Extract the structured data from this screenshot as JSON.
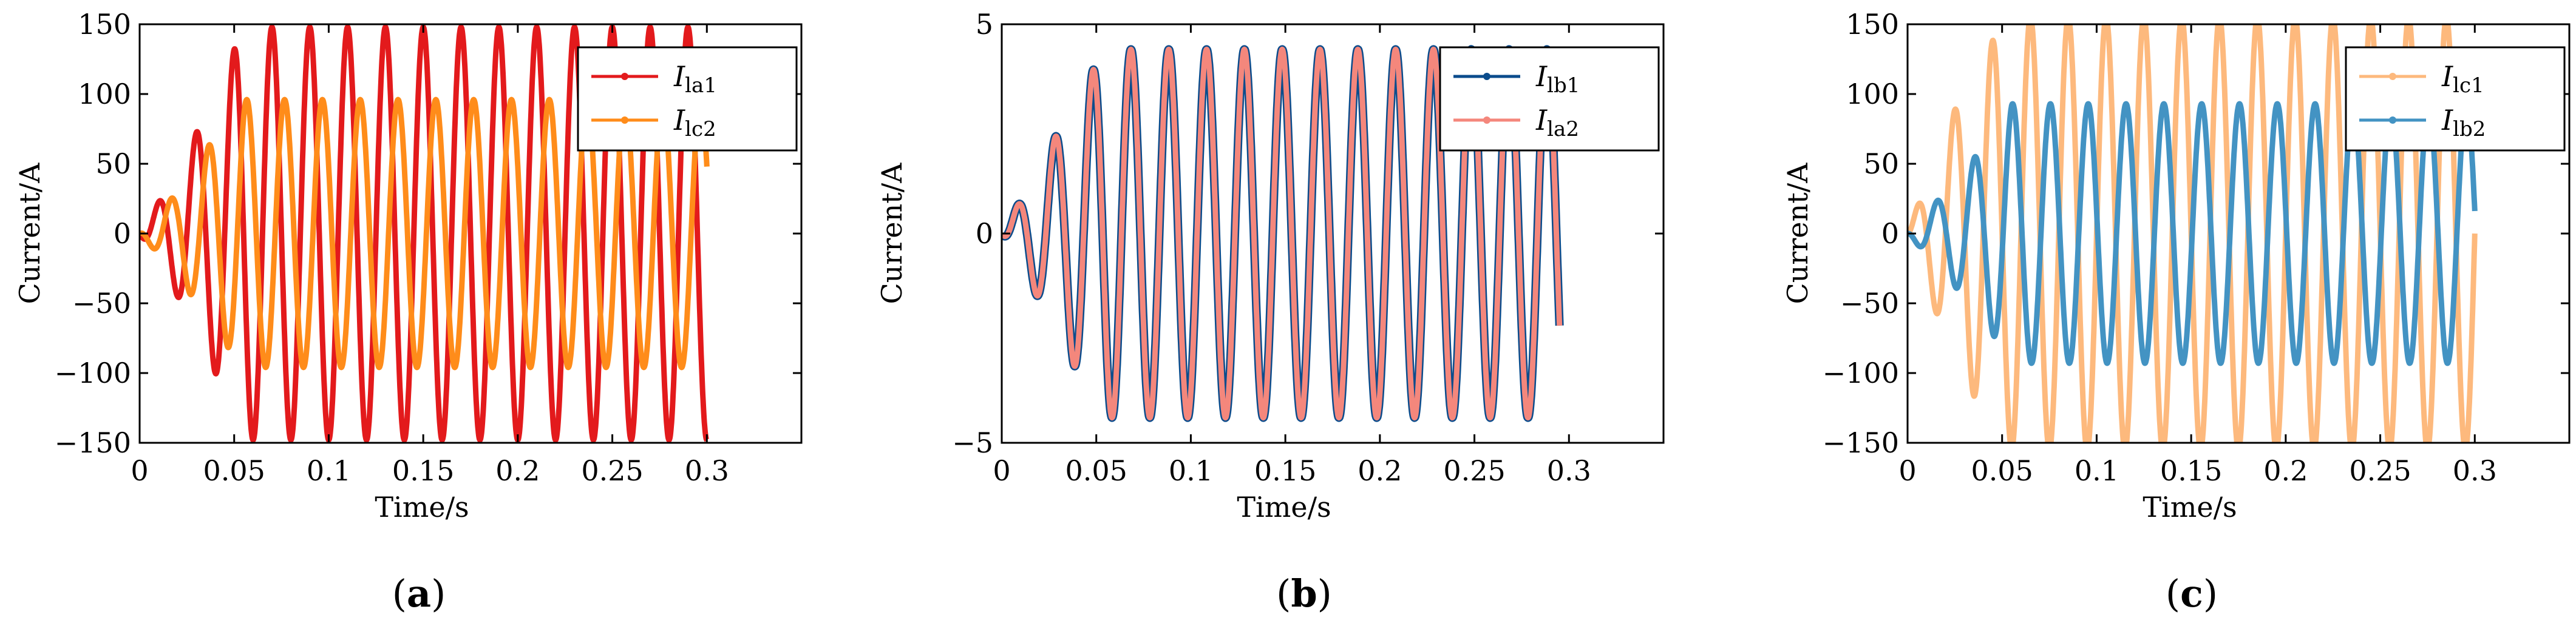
{
  "chart_data": [
    {
      "type": "line",
      "panel_label": "a",
      "xlabel": "Time/s",
      "ylabel": "Current/A",
      "xlim": [
        0,
        0.35
      ],
      "ylim": [
        -150,
        150
      ],
      "xticks": [
        "0",
        "0.05",
        "0.1",
        "0.15",
        "0.2",
        "0.25",
        "0.3"
      ],
      "yticks": [
        "150",
        "100",
        "50",
        "0",
        "−50",
        "−100",
        "−150"
      ],
      "legend_position": "top-right",
      "series": [
        {
          "name": "I",
          "sub": "la1",
          "color": "#e31a1c",
          "freq_hz": 50,
          "phase_deg": -90,
          "amp_env": [
            [
              0,
              0
            ],
            [
              0.02,
              45
            ],
            [
              0.04,
              100
            ],
            [
              0.055,
              148
            ],
            [
              0.3,
              148
            ]
          ],
          "values_note": "steady-state peak ±148"
        },
        {
          "name": "I",
          "sub": "lc2",
          "color": "#ff8c1a",
          "freq_hz": 50,
          "phase_deg": 150,
          "amp_env": [
            [
              0,
              0
            ],
            [
              0.02,
              30
            ],
            [
              0.04,
              70
            ],
            [
              0.055,
              96
            ],
            [
              0.3,
              96
            ]
          ],
          "values_note": "steady-state peak ±96"
        }
      ]
    },
    {
      "type": "line",
      "panel_label": "b",
      "xlabel": "Time/s",
      "ylabel": "Current/A",
      "xlim": [
        0,
        0.35
      ],
      "ylim": [
        -5,
        5
      ],
      "xticks": [
        "0",
        "0.05",
        "0.1",
        "0.15",
        "0.2",
        "0.25",
        "0.3"
      ],
      "yticks": [
        "5",
        "0",
        "−5"
      ],
      "legend_position": "top-right",
      "series": [
        {
          "name": "I",
          "sub": "lb1",
          "color": "#0b4c8c",
          "freq_hz": 50,
          "phase_deg": -60,
          "amp_env": [
            [
              0,
              0
            ],
            [
              0.02,
              1.6
            ],
            [
              0.04,
              3.3
            ],
            [
              0.055,
              4.4
            ],
            [
              0.295,
              4.4
            ]
          ],
          "values_note": "steady-state peak ±4.4"
        },
        {
          "name": "I",
          "sub": "la2",
          "color": "#f4877c",
          "freq_hz": 50,
          "phase_deg": -60,
          "amp_env": [
            [
              0,
              0
            ],
            [
              0.02,
              1.6
            ],
            [
              0.04,
              3.3
            ],
            [
              0.055,
              4.4
            ],
            [
              0.295,
              4.4
            ]
          ],
          "values_note": "steady-state peak ±4.4"
        }
      ]
    },
    {
      "type": "line",
      "panel_label": "c",
      "xlabel": "Time/s",
      "ylabel": "Current/A",
      "xlim": [
        0,
        0.35
      ],
      "ylim": [
        -150,
        150
      ],
      "xticks": [
        "0",
        "0.05",
        "0.1",
        "0.15",
        "0.2",
        "0.25",
        "0.3"
      ],
      "yticks": [
        "150",
        "100",
        "50",
        "0",
        "−50",
        "−100",
        "−150"
      ],
      "legend_position": "top-right",
      "series": [
        {
          "name": "I",
          "sub": "lc1",
          "color": "#fdb97d",
          "freq_hz": 50,
          "phase_deg": 0,
          "amp_env": [
            [
              0,
              0
            ],
            [
              0.02,
              75
            ],
            [
              0.04,
              130
            ],
            [
              0.055,
              155
            ],
            [
              0.3,
              155
            ]
          ],
          "values_note": "steady-state peak exceeds ±150"
        },
        {
          "name": "I",
          "sub": "lb2",
          "color": "#4393c3",
          "freq_hz": 50,
          "phase_deg": 170,
          "amp_env": [
            [
              0,
              0
            ],
            [
              0.02,
              30
            ],
            [
              0.04,
              62
            ],
            [
              0.055,
              93
            ],
            [
              0.3,
              93
            ]
          ],
          "values_note": "steady-state peak ±93"
        }
      ]
    }
  ]
}
